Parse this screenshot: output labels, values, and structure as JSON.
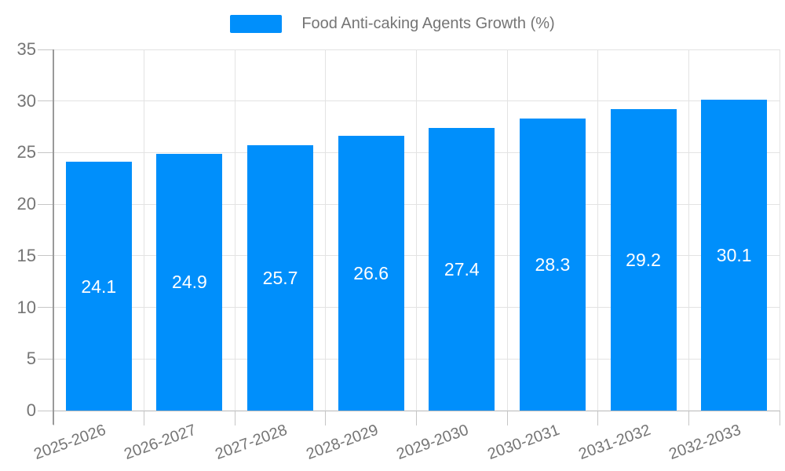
{
  "colors": {
    "bar": "#008FFB",
    "grid": "#E3E3E3",
    "baseline": "#B8B8B8",
    "axis_line": "#9A9A9A",
    "tick": "#C6C6C6",
    "label_text": "#757575",
    "value_text": "#FFFFFF",
    "background": "#FFFFFF"
  },
  "legend": {
    "label": "Food Anti-caking Agents Growth (%)"
  },
  "chart_data": {
    "type": "bar",
    "title": "Food Anti-caking Agents Growth (%)",
    "categories": [
      "2025-2026",
      "2026-2027",
      "2027-2028",
      "2028-2029",
      "2029-2030",
      "2030-2031",
      "2031-2032",
      "2032-2033"
    ],
    "series": [
      {
        "name": "Food Anti-caking Agents Growth (%)",
        "values": [
          24.1,
          24.9,
          25.7,
          26.6,
          27.4,
          28.3,
          29.2,
          30.1
        ]
      }
    ],
    "value_labels": [
      "24.1",
      "24.9",
      "25.7",
      "26.6",
      "27.4",
      "28.3",
      "29.2",
      "30.1"
    ],
    "xlabel": "",
    "ylabel": "",
    "ylim": [
      0,
      35
    ],
    "yticks": [
      0,
      5,
      10,
      15,
      20,
      25,
      30,
      35
    ],
    "grid": true,
    "legend_position": "top",
    "value_label_position": "inside-center",
    "x_label_rotation_deg": -20
  }
}
